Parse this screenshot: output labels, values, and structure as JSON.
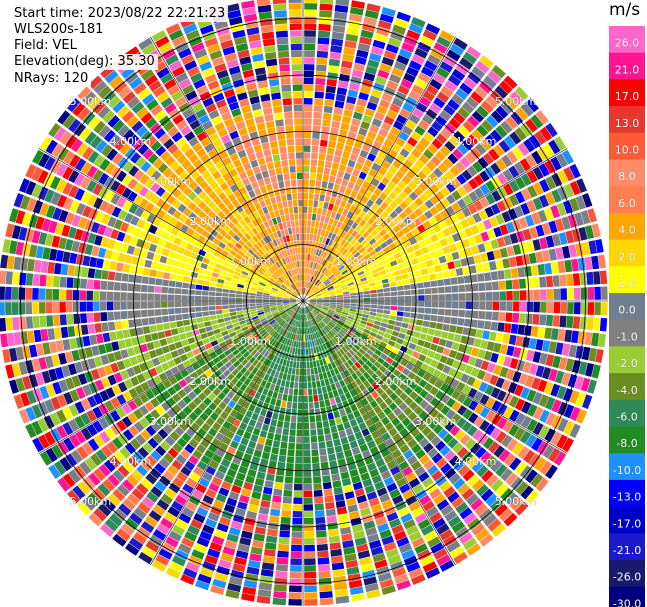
{
  "info": {
    "start_time": "Start time: 2023/08/22 22:21:23",
    "instrument": "WLS200s-181",
    "field": "Field: VEL",
    "elevation": "Elevation(deg): 35.30",
    "nrays": "NRays: 120"
  },
  "chart_data": {
    "type": "heatmap",
    "projection": "polar-ppi",
    "field": "VEL",
    "units": "m/s",
    "nrays": 120,
    "elevation_deg": 35.3,
    "range_max_km": 5.4,
    "range_rings_km": [
      1.0,
      2.0,
      3.0,
      4.0,
      5.0
    ],
    "range_labels": [
      "1.00km",
      "2.00km",
      "3.00km",
      "4.00km",
      "5.00km"
    ],
    "colorbar": {
      "ticks": [
        "26.0",
        "21.0",
        "17.0",
        "13.0",
        "10.0",
        "8.0",
        "6.0",
        "4.0",
        "2.0",
        "1.0",
        "0.0",
        "-1.0",
        "-2.0",
        "-4.0",
        "-6.0",
        "-8.0",
        "-10.0",
        "-13.0",
        "-17.0",
        "-21.0",
        "-26.0",
        "-30.0"
      ],
      "colors": [
        "#ff66cc",
        "#ff1493",
        "#ff0000",
        "#e5382f",
        "#ff5a36",
        "#ff8c69",
        "#ff7f50",
        "#ffa500",
        "#ffd700",
        "#ffff00",
        "#708090",
        "#808080",
        "#9acd32",
        "#6b8e23",
        "#2e8b57",
        "#228b22",
        "#1e90ff",
        "#0000ff",
        "#0000cd",
        "#1a1acc",
        "#191970",
        "#000080"
      ]
    },
    "pattern": "near-field positive (yellow/orange) toward north, negative (green) toward south, noisy multicolor beyond ~3.3 km"
  }
}
